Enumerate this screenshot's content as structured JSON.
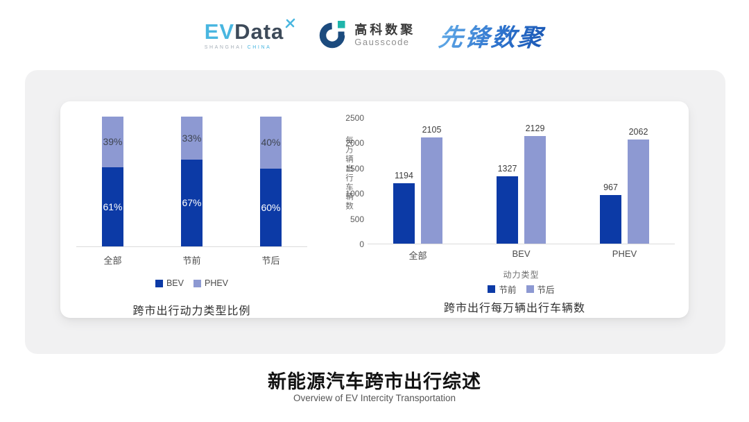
{
  "header": {
    "evdata": {
      "ev": "EV",
      "data": "Data",
      "sub_left": "SHANGHAI",
      "sub_right": "CHINA"
    },
    "gausscode": {
      "cn": "高科数聚",
      "en": "Gausscode"
    },
    "xianfeng": "先锋数聚"
  },
  "palette": {
    "bev_dark_blue": "#0C3AA6",
    "phev_light_blue": "#8D99D2",
    "axis_line": "#DBDBDB",
    "segment_label_dark": "#3E4450",
    "segment_label_light": "#FFFFFF",
    "logo_light_blue": "#49B6E0",
    "logo_dark_slate": "#3D4A59",
    "gauss_navy": "#1C4B7E",
    "gauss_teal": "#1FB5AB"
  },
  "chart_data": [
    {
      "type": "bar",
      "variant": "stacked-percent",
      "title": "跨市出行动力类型比例",
      "categories": [
        "全部",
        "节前",
        "节后"
      ],
      "series": [
        {
          "name": "BEV",
          "color": "#0C3AA6",
          "values": [
            61,
            67,
            60
          ]
        },
        {
          "name": "PHEV",
          "color": "#8D99D2",
          "values": [
            39,
            33,
            40
          ]
        }
      ],
      "value_suffix": "%",
      "ylim": [
        0,
        100
      ],
      "legend_position": "bottom",
      "grid": false
    },
    {
      "type": "bar",
      "variant": "grouped",
      "title": "跨市出行每万辆出行车辆数",
      "xlabel": "动力类型",
      "ylabel": "每万辆出行车辆数",
      "categories": [
        "全部",
        "BEV",
        "PHEV"
      ],
      "series": [
        {
          "name": "节前",
          "color": "#0C3AA6",
          "values": [
            1194,
            1327,
            967
          ]
        },
        {
          "name": "节后",
          "color": "#8D99D2",
          "values": [
            2105,
            2129,
            2062
          ]
        }
      ],
      "yticks": [
        0,
        500,
        1000,
        1500,
        2000,
        2500
      ],
      "ylim": [
        0,
        2500
      ],
      "legend_position": "bottom",
      "grid": false
    }
  ],
  "footer": {
    "title": "新能源汽车跨市出行综述",
    "subtitle": "Overview of EV Intercity Transportation"
  }
}
